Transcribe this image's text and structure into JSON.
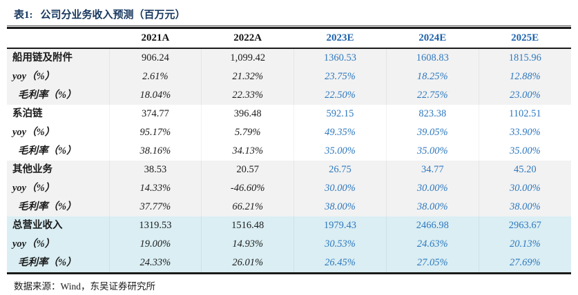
{
  "title_prefix": "表1:",
  "title_text": "公司分业务收入预测（百万元）",
  "source": "数据来源：Wind，东吴证券研究所",
  "colors": {
    "title_navy": "#17375E",
    "estimate_header_blue": "#1F63AC",
    "estimate_value_blue": "#2E78BE",
    "section_band_gray": "#F2F2F2",
    "total_band_blue": "#DAEEF3",
    "rule_black": "#1A1A1A"
  },
  "table": {
    "columns": [
      {
        "label": "",
        "type": "label"
      },
      {
        "label": "2021A",
        "type": "actual"
      },
      {
        "label": "2022A",
        "type": "actual"
      },
      {
        "label": "2023E",
        "type": "estimate"
      },
      {
        "label": "2024E",
        "type": "estimate"
      },
      {
        "label": "2025E",
        "type": "estimate"
      }
    ],
    "rows": [
      {
        "label": "船用链及附件",
        "kind": "section",
        "group": "gray",
        "values": [
          "906.24",
          "1,099.42",
          "1360.53",
          "1608.83",
          "1815.96"
        ]
      },
      {
        "label": "yoy（%）",
        "kind": "yoy",
        "group": "gray",
        "values": [
          "2.61%",
          "21.32%",
          "23.75%",
          "18.25%",
          "12.88%"
        ]
      },
      {
        "label": "毛利率（%）",
        "kind": "margin",
        "group": "gray",
        "values": [
          "18.04%",
          "22.33%",
          "22.50%",
          "22.75%",
          "23.00%"
        ]
      },
      {
        "label": "系泊链",
        "kind": "section",
        "group": "white",
        "values": [
          "374.77",
          "396.48",
          "592.15",
          "823.38",
          "1102.51"
        ]
      },
      {
        "label": "yoy（%）",
        "kind": "yoy",
        "group": "white",
        "values": [
          "95.17%",
          "5.79%",
          "49.35%",
          "39.05%",
          "33.90%"
        ]
      },
      {
        "label": "毛利率（%）",
        "kind": "margin",
        "group": "white",
        "values": [
          "38.16%",
          "34.13%",
          "35.00%",
          "35.00%",
          "35.00%"
        ]
      },
      {
        "label": "其他业务",
        "kind": "section",
        "group": "gray",
        "values": [
          "38.53",
          "20.57",
          "26.75",
          "34.77",
          "45.20"
        ]
      },
      {
        "label": "yoy（%）",
        "kind": "yoy",
        "group": "gray",
        "values": [
          "14.33%",
          "-46.60%",
          "30.00%",
          "30.00%",
          "30.00%"
        ]
      },
      {
        "label": "毛利率（%）",
        "kind": "margin",
        "group": "gray",
        "values": [
          "37.77%",
          "66.21%",
          "38.00%",
          "38.00%",
          "38.00%"
        ]
      },
      {
        "label": "总营业收入",
        "kind": "section",
        "group": "blue",
        "values": [
          "1319.53",
          "1516.48",
          "1979.43",
          "2466.98",
          "2963.67"
        ]
      },
      {
        "label": "yoy（%）",
        "kind": "yoy",
        "group": "blue",
        "values": [
          "19.00%",
          "14.93%",
          "30.53%",
          "24.63%",
          "20.13%"
        ]
      },
      {
        "label": "毛利率（%）",
        "kind": "margin",
        "group": "blue",
        "values": [
          "24.33%",
          "26.01%",
          "26.45%",
          "27.05%",
          "27.69%"
        ]
      }
    ]
  }
}
